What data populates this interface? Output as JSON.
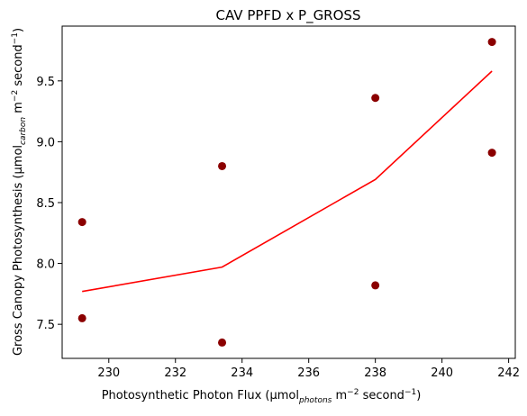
{
  "chart_data": {
    "type": "scatter",
    "title": "CAV PPFD x P_GROSS",
    "xlabel": {
      "pre": "Photosynthetic Photon Flux (μmol",
      "sub": "photons",
      "mid": " m",
      "sup1": "−2",
      "mid2": " second",
      "sup2": "−1",
      "post": ")"
    },
    "ylabel": {
      "pre": "Gross Canopy Photosynthesis (μmol",
      "sub": "carbon",
      "mid": " m",
      "sup1": "−2",
      "mid2": " second",
      "sup2": "−1",
      "post": ")"
    },
    "xlim": [
      228.6,
      242.2
    ],
    "ylim": [
      7.22,
      9.95
    ],
    "xticks": [
      230,
      232,
      234,
      236,
      238,
      240,
      242
    ],
    "xtick_labels": [
      "230",
      "232",
      "234",
      "236",
      "238",
      "240",
      "242"
    ],
    "yticks": [
      7.5,
      8.0,
      8.5,
      9.0,
      9.5
    ],
    "ytick_labels": [
      "7.5",
      "8.0",
      "8.5",
      "9.0",
      "9.5"
    ],
    "grid": false,
    "series": [
      {
        "type": "scatter",
        "color": "#8b0000",
        "points": [
          {
            "x": 229.2,
            "y": 8.34
          },
          {
            "x": 229.2,
            "y": 7.55
          },
          {
            "x": 233.4,
            "y": 8.8
          },
          {
            "x": 233.4,
            "y": 7.35
          },
          {
            "x": 238.0,
            "y": 9.36
          },
          {
            "x": 238.0,
            "y": 7.82
          },
          {
            "x": 241.5,
            "y": 9.82
          },
          {
            "x": 241.5,
            "y": 8.91
          }
        ]
      },
      {
        "type": "line",
        "color": "#ff0000",
        "points": [
          {
            "x": 229.2,
            "y": 7.77
          },
          {
            "x": 233.4,
            "y": 7.97
          },
          {
            "x": 238.0,
            "y": 8.69
          },
          {
            "x": 241.5,
            "y": 9.58
          }
        ]
      }
    ]
  }
}
